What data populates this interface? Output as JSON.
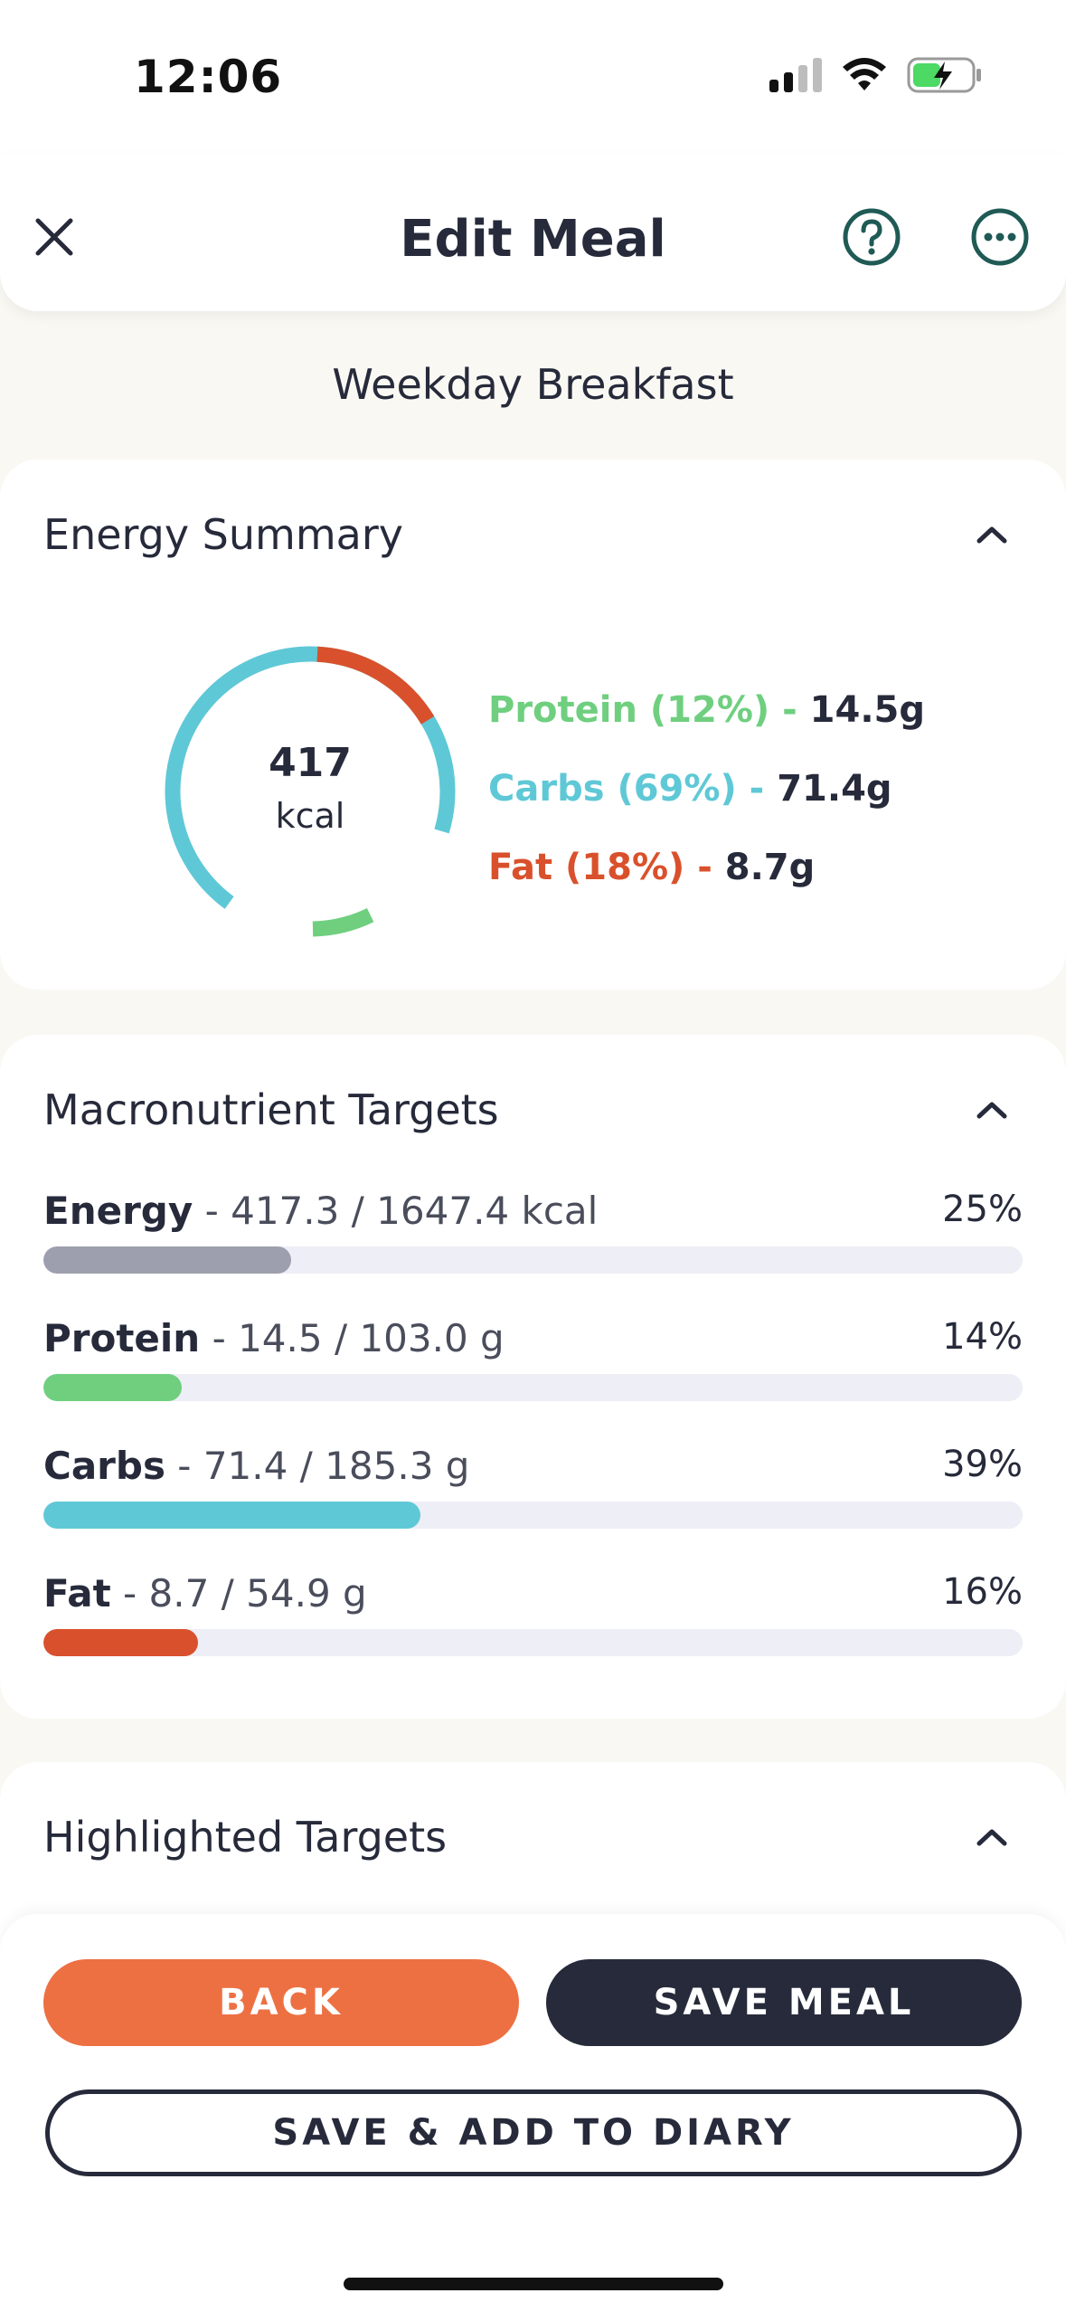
{
  "status_bar": {
    "time": "12:06"
  },
  "header": {
    "title": "Edit Meal",
    "close_icon": "close-icon",
    "help_icon": "help-circle-icon",
    "more_icon": "more-horizontal-icon"
  },
  "meal": {
    "name": "Weekday Breakfast"
  },
  "energy_summary": {
    "title": "Energy Summary",
    "total": "417",
    "unit": "kcal",
    "legend": [
      {
        "label": "Protein (12%)",
        "sep": " - ",
        "value": "14.5g",
        "color": "#6fcf7f"
      },
      {
        "label": "Carbs (69%)",
        "sep": " - ",
        "value": "71.4g",
        "color": "#5fc8d6"
      },
      {
        "label": "Fat (18%)",
        "sep": " - ",
        "value": "8.7g",
        "color": "#d9512c"
      }
    ]
  },
  "macronutrient_targets": {
    "title": "Macronutrient Targets",
    "rows": [
      {
        "name": "Energy",
        "detail": "417.3 / 1647.4 kcal",
        "pct": "25%",
        "fraction": 0.253,
        "color": "#9d9fae"
      },
      {
        "name": "Protein",
        "detail": "14.5 / 103.0 g",
        "pct": "14%",
        "fraction": 0.141,
        "color": "#6fcf7f"
      },
      {
        "name": "Carbs",
        "detail": "71.4 / 185.3 g",
        "pct": "39%",
        "fraction": 0.385,
        "color": "#5fc8d6"
      },
      {
        "name": "Fat",
        "detail": "8.7 / 54.9 g",
        "pct": "16%",
        "fraction": 0.158,
        "color": "#d9512c"
      }
    ]
  },
  "highlighted_targets": {
    "title": "Highlighted Targets"
  },
  "actions": {
    "back": "BACK",
    "save_meal": "SAVE MEAL",
    "save_add_diary": "SAVE & ADD TO DIARY"
  },
  "colors": {
    "accent_orange": "#ed7043",
    "dark": "#262a3a",
    "teal_icon": "#1f5a55"
  }
}
